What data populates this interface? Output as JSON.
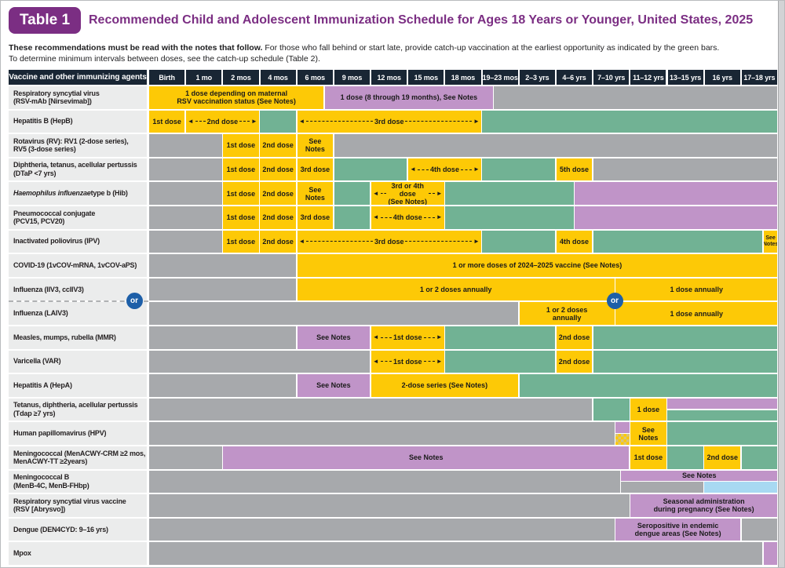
{
  "header": {
    "badge": "Table 1",
    "title": "Recommended Child and Adolescent Immunization Schedule for Ages 18 Years or Younger, United States, 2025"
  },
  "intro": {
    "bold": "These recommendations must be read with the notes that follow.",
    "rest": "For those who fall behind or start late, provide catch-up vaccination at the earliest opportunity as indicated by the green bars.",
    "line2": "To determine minimum intervals between doses, see the catch-up schedule (Table 2)."
  },
  "palette": {
    "yellow": "#FDC906",
    "green": "#71B294",
    "purple": "#C094C8",
    "gray": "#A7A9AC",
    "blue": "#A8D9F2",
    "header_bg": "#192634",
    "label_bg": "#EBECEC",
    "accent_purple": "#7B2E83",
    "or_badge_blue": "#1D5FA8"
  },
  "table": {
    "corner_label": "Vaccine and other immunizing agents",
    "or_label": "or",
    "columns": [
      "Birth",
      "1 mo",
      "2 mos",
      "4 mos",
      "6 mos",
      "9 mos",
      "12 mos",
      "15 mos",
      "18 mos",
      "19–23 mos",
      "2–3 yrs",
      "4–6 yrs",
      "7–10 yrs",
      "11–12 yrs",
      "13–15 yrs",
      "16 yrs",
      "17–18 yrs"
    ],
    "rows": [
      {
        "label": [
          {
            "t": "Respiratory syncytial virus\n(RSV-mAb [Nirsevimab])"
          }
        ],
        "cells": [
          {
            "f": 0,
            "t": 4.75,
            "c": "yellow",
            "x": "1 dose depending on maternal\nRSV vaccination status (See Notes)"
          },
          {
            "f": 4.75,
            "t": 9.32,
            "c": "purple",
            "x": "1 dose (8 through 19 months), See Notes"
          },
          {
            "f": 9.32,
            "t": 17,
            "c": "gray"
          }
        ]
      },
      {
        "label": [
          {
            "t": "Hepatitis B (HepB)"
          }
        ],
        "cells": [
          {
            "f": 0,
            "t": 1,
            "c": "yellow",
            "x": "1st dose"
          },
          {
            "f": 1,
            "t": 3,
            "c": "yellow",
            "x": "2nd dose",
            "a": true
          },
          {
            "f": 3,
            "t": 4,
            "c": "green"
          },
          {
            "f": 4,
            "t": 9,
            "c": "yellow",
            "x": "3rd dose",
            "a": true
          },
          {
            "f": 9,
            "t": 17,
            "c": "green"
          }
        ]
      },
      {
        "label": [
          {
            "t": "Rotavirus (RV): RV1 (2-dose series),\nRV5 (3-dose series)"
          }
        ],
        "cells": [
          {
            "f": 0,
            "t": 2,
            "c": "gray"
          },
          {
            "f": 2,
            "t": 3,
            "c": "yellow",
            "x": "1st dose"
          },
          {
            "f": 3,
            "t": 4,
            "c": "yellow",
            "x": "2nd dose"
          },
          {
            "f": 4,
            "t": 5,
            "c": "yellow",
            "x": "See Notes"
          },
          {
            "f": 5,
            "t": 17,
            "c": "gray"
          }
        ]
      },
      {
        "label": [
          {
            "t": "Diphtheria, tetanus, acellular pertussis\n(DTaP <7 yrs)"
          }
        ],
        "cells": [
          {
            "f": 0,
            "t": 2,
            "c": "gray"
          },
          {
            "f": 2,
            "t": 3,
            "c": "yellow",
            "x": "1st dose"
          },
          {
            "f": 3,
            "t": 4,
            "c": "yellow",
            "x": "2nd dose"
          },
          {
            "f": 4,
            "t": 5,
            "c": "yellow",
            "x": "3rd dose"
          },
          {
            "f": 5,
            "t": 7,
            "c": "green"
          },
          {
            "f": 7,
            "t": 9,
            "c": "yellow",
            "x": "4th dose",
            "a": true
          },
          {
            "f": 9,
            "t": 11,
            "c": "green"
          },
          {
            "f": 11,
            "t": 12,
            "c": "yellow",
            "x": "5th dose"
          },
          {
            "f": 12,
            "t": 17,
            "c": "gray"
          }
        ]
      },
      {
        "label": [
          {
            "t": "Haemophilus influenzae",
            "i": true
          },
          {
            "t": " type b (Hib)"
          }
        ],
        "cells": [
          {
            "f": 0,
            "t": 2,
            "c": "gray"
          },
          {
            "f": 2,
            "t": 3,
            "c": "yellow",
            "x": "1st dose"
          },
          {
            "f": 3,
            "t": 4,
            "c": "yellow",
            "x": "2nd dose"
          },
          {
            "f": 4,
            "t": 5,
            "c": "yellow",
            "x": "See Notes"
          },
          {
            "f": 5,
            "t": 6,
            "c": "green"
          },
          {
            "f": 6,
            "t": 8,
            "c": "yellow",
            "x": "3rd or 4th dose\n(See Notes)",
            "a": true
          },
          {
            "f": 8,
            "t": 11.5,
            "c": "green"
          },
          {
            "f": 11.5,
            "t": 17,
            "c": "purple"
          }
        ]
      },
      {
        "label": [
          {
            "t": "Pneumococcal conjugate\n(PCV15, PCV20)"
          }
        ],
        "cells": [
          {
            "f": 0,
            "t": 2,
            "c": "gray"
          },
          {
            "f": 2,
            "t": 3,
            "c": "yellow",
            "x": "1st dose"
          },
          {
            "f": 3,
            "t": 4,
            "c": "yellow",
            "x": "2nd dose"
          },
          {
            "f": 4,
            "t": 5,
            "c": "yellow",
            "x": "3rd dose"
          },
          {
            "f": 5,
            "t": 6,
            "c": "green"
          },
          {
            "f": 6,
            "t": 8,
            "c": "yellow",
            "x": "4th dose",
            "a": true
          },
          {
            "f": 8,
            "t": 11.5,
            "c": "green"
          },
          {
            "f": 11.5,
            "t": 17,
            "c": "purple"
          }
        ]
      },
      {
        "label": [
          {
            "t": "Inactivated poliovirus (IPV)"
          }
        ],
        "cells": [
          {
            "f": 0,
            "t": 2,
            "c": "gray"
          },
          {
            "f": 2,
            "t": 3,
            "c": "yellow",
            "x": "1st dose"
          },
          {
            "f": 3,
            "t": 4,
            "c": "yellow",
            "x": "2nd dose"
          },
          {
            "f": 4,
            "t": 9,
            "c": "yellow",
            "x": "3rd dose",
            "a": true
          },
          {
            "f": 9,
            "t": 11,
            "c": "green"
          },
          {
            "f": 11,
            "t": 12,
            "c": "yellow",
            "x": "4th dose"
          },
          {
            "f": 12,
            "t": 16.6,
            "c": "green"
          },
          {
            "f": 16.6,
            "t": 17,
            "c": "yellow",
            "x": "See\nNotes",
            "s": true
          }
        ]
      },
      {
        "label": [
          {
            "t": "COVID-19 (1vCOV-mRNA, 1vCOV-aPS)"
          }
        ],
        "cells": [
          {
            "f": 0,
            "t": 4,
            "c": "gray"
          },
          {
            "f": 4,
            "t": 17,
            "c": "yellow",
            "x": "1 or more doses of 2024–2025 vaccine (See Notes)"
          }
        ]
      },
      {
        "label": [
          {
            "t": "Influenza (IIV3, ccIIV3)"
          }
        ],
        "cells": [
          {
            "f": 0,
            "t": 4,
            "c": "gray"
          },
          {
            "f": 4,
            "t": 12.6,
            "c": "yellow",
            "x": "1 or 2 doses annually"
          },
          {
            "f": 12.6,
            "t": 17,
            "c": "yellow",
            "x": "1 dose annually"
          }
        ]
      },
      {
        "label": [
          {
            "t": "Influenza (LAIV3)"
          }
        ],
        "cells": [
          {
            "f": 0,
            "t": 10,
            "c": "gray"
          },
          {
            "f": 10,
            "t": 12.6,
            "c": "yellow",
            "x": "1 or 2 doses\nannually"
          },
          {
            "f": 12.6,
            "t": 17,
            "c": "yellow",
            "x": "1 dose annually"
          }
        ]
      },
      {
        "label": [
          {
            "t": "Measles, mumps, rubella (MMR)"
          }
        ],
        "cells": [
          {
            "f": 0,
            "t": 4,
            "c": "gray"
          },
          {
            "f": 4,
            "t": 6,
            "c": "purple",
            "x": "See Notes"
          },
          {
            "f": 6,
            "t": 8,
            "c": "yellow",
            "x": "1st dose",
            "a": true
          },
          {
            "f": 8,
            "t": 11,
            "c": "green"
          },
          {
            "f": 11,
            "t": 12,
            "c": "yellow",
            "x": "2nd dose"
          },
          {
            "f": 12,
            "t": 17,
            "c": "green"
          }
        ]
      },
      {
        "label": [
          {
            "t": "Varicella (VAR)"
          }
        ],
        "cells": [
          {
            "f": 0,
            "t": 6,
            "c": "gray"
          },
          {
            "f": 6,
            "t": 8,
            "c": "yellow",
            "x": "1st dose",
            "a": true
          },
          {
            "f": 8,
            "t": 11,
            "c": "green"
          },
          {
            "f": 11,
            "t": 12,
            "c": "yellow",
            "x": "2nd dose"
          },
          {
            "f": 12,
            "t": 17,
            "c": "green"
          }
        ]
      },
      {
        "label": [
          {
            "t": "Hepatitis A (HepA)"
          }
        ],
        "cells": [
          {
            "f": 0,
            "t": 4,
            "c": "gray"
          },
          {
            "f": 4,
            "t": 6,
            "c": "purple",
            "x": "See Notes"
          },
          {
            "f": 6,
            "t": 10,
            "c": "yellow",
            "x": "2-dose series (See Notes)"
          },
          {
            "f": 10,
            "t": 17,
            "c": "green"
          }
        ]
      },
      {
        "label": [
          {
            "t": "Tetanus, diphtheria, acellular pertussis\n(Tdap ≥7 yrs)"
          }
        ],
        "cells": [
          {
            "f": 0,
            "t": 12,
            "c": "gray"
          },
          {
            "f": 12,
            "t": 13,
            "c": "green"
          },
          {
            "f": 13,
            "t": 14,
            "c": "yellow",
            "x": "1 dose"
          },
          {
            "f": 14,
            "t": 17,
            "c": "purple",
            "h": "top"
          },
          {
            "f": 14,
            "t": 17,
            "c": "green",
            "h": "bottom"
          }
        ]
      },
      {
        "label": [
          {
            "t": "Human papillomavirus (HPV)"
          }
        ],
        "cells": [
          {
            "f": 0,
            "t": 12.6,
            "c": "gray"
          },
          {
            "f": 12.6,
            "t": 13,
            "c": "purple",
            "h": "top"
          },
          {
            "f": 12.6,
            "t": 13,
            "c": "checker",
            "h": "bottom"
          },
          {
            "f": 13,
            "t": 14,
            "c": "yellow",
            "x": "See\nNotes"
          },
          {
            "f": 14,
            "t": 17,
            "c": "green"
          }
        ]
      },
      {
        "label": [
          {
            "t": "Meningococcal (MenACWY-CRM ≥2 mos,\nMenACWY-TT ≥2years)"
          }
        ],
        "cells": [
          {
            "f": 0,
            "t": 2,
            "c": "gray"
          },
          {
            "f": 2,
            "t": 13,
            "c": "purple",
            "x": "See Notes"
          },
          {
            "f": 13,
            "t": 14,
            "c": "yellow",
            "x": "1st dose"
          },
          {
            "f": 14,
            "t": 15,
            "c": "green"
          },
          {
            "f": 15,
            "t": 16,
            "c": "yellow",
            "x": "2nd dose"
          },
          {
            "f": 16,
            "t": 17,
            "c": "green"
          }
        ]
      },
      {
        "label": [
          {
            "t": "Meningococcal B\n(MenB-4C, MenB-FHbp)"
          }
        ],
        "cells": [
          {
            "f": 0,
            "t": 12.75,
            "c": "gray"
          },
          {
            "f": 12.75,
            "t": 17,
            "c": "purple",
            "x": "See Notes",
            "h": "top"
          },
          {
            "f": 12.75,
            "t": 15,
            "c": "gray",
            "h": "bottom"
          },
          {
            "f": 15,
            "t": 17,
            "c": "blue",
            "h": "bottom"
          }
        ]
      },
      {
        "label": [
          {
            "t": "Respiratory syncytial virus vaccine\n(RSV [Abrysvo])"
          }
        ],
        "cells": [
          {
            "f": 0,
            "t": 13,
            "c": "gray"
          },
          {
            "f": 13,
            "t": 17,
            "c": "purple",
            "x": "Seasonal administration\nduring pregnancy (See Notes)"
          }
        ]
      },
      {
        "label": [
          {
            "t": "Dengue (DEN4CYD: 9–16 yrs)"
          }
        ],
        "cells": [
          {
            "f": 0,
            "t": 12.6,
            "c": "gray"
          },
          {
            "f": 12.6,
            "t": 16,
            "c": "purple",
            "x": "Seropositive in endemic\ndengue areas (See Notes)"
          },
          {
            "f": 16,
            "t": 17,
            "c": "gray"
          }
        ]
      },
      {
        "label": [
          {
            "t": "Mpox"
          }
        ],
        "cells": [
          {
            "f": 0,
            "t": 16.6,
            "c": "gray"
          },
          {
            "f": 16.6,
            "t": 17,
            "c": "purple"
          }
        ]
      }
    ]
  }
}
